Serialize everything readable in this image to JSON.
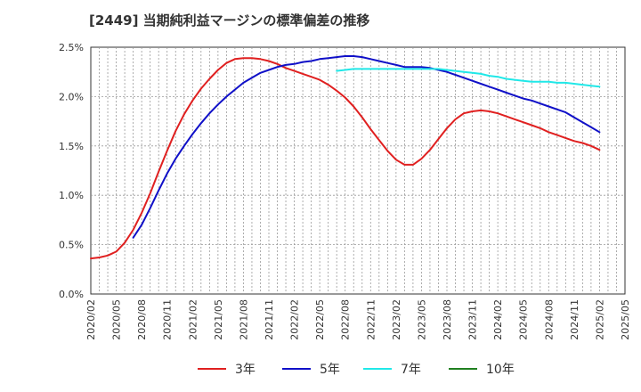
{
  "chart_data": {
    "type": "line",
    "title": "[2449]  当期純利益マージンの標準偏差の推移",
    "xlabel": "",
    "ylabel": "",
    "ylim": [
      0,
      2.5
    ],
    "y_ticks": [
      0,
      0.5,
      1.0,
      1.5,
      2.0,
      2.5
    ],
    "y_tick_labels": [
      "0.0%",
      "0.5%",
      "1.0%",
      "1.5%",
      "2.0%",
      "2.5%"
    ],
    "x_tick_labels": [
      "2020/02",
      "2020/05",
      "2020/08",
      "2020/11",
      "2021/02",
      "2021/05",
      "2021/08",
      "2021/11",
      "2022/02",
      "2022/05",
      "2022/08",
      "2022/11",
      "2023/02",
      "2023/05",
      "2023/08",
      "2023/11",
      "2024/02",
      "2024/05",
      "2024/08",
      "2024/11",
      "2025/02",
      "2025/05"
    ],
    "grid": true,
    "legend_position": "bottom",
    "series": [
      {
        "name": "3年",
        "color": "#e02020",
        "x": [
          "2020/02",
          "2020/03",
          "2020/04",
          "2020/05",
          "2020/06",
          "2020/07",
          "2020/08",
          "2020/09",
          "2020/10",
          "2020/11",
          "2020/12",
          "2021/01",
          "2021/02",
          "2021/03",
          "2021/04",
          "2021/05",
          "2021/06",
          "2021/07",
          "2021/08",
          "2021/09",
          "2021/10",
          "2021/11",
          "2021/12",
          "2022/01",
          "2022/02",
          "2022/03",
          "2022/04",
          "2022/05",
          "2022/06",
          "2022/07",
          "2022/08",
          "2022/09",
          "2022/10",
          "2022/11",
          "2022/12",
          "2023/01",
          "2023/02",
          "2023/03",
          "2023/04",
          "2023/05",
          "2023/06",
          "2023/07",
          "2023/08",
          "2023/09",
          "2023/10",
          "2023/11",
          "2023/12",
          "2024/01",
          "2024/02",
          "2024/03",
          "2024/04",
          "2024/05",
          "2024/06",
          "2024/07",
          "2024/08",
          "2024/09",
          "2024/10",
          "2024/11",
          "2024/12",
          "2025/01",
          "2025/02"
        ],
        "values": [
          0.36,
          0.37,
          0.39,
          0.43,
          0.52,
          0.65,
          0.82,
          1.02,
          1.24,
          1.45,
          1.65,
          1.82,
          1.96,
          2.08,
          2.18,
          2.27,
          2.34,
          2.38,
          2.39,
          2.39,
          2.38,
          2.36,
          2.33,
          2.29,
          2.26,
          2.23,
          2.2,
          2.17,
          2.12,
          2.06,
          1.99,
          1.9,
          1.79,
          1.67,
          1.56,
          1.45,
          1.36,
          1.31,
          1.31,
          1.37,
          1.46,
          1.57,
          1.68,
          1.77,
          1.83,
          1.85,
          1.86,
          1.85,
          1.83,
          1.8,
          1.77,
          1.74,
          1.71,
          1.68,
          1.64,
          1.61,
          1.58,
          1.55,
          1.53,
          1.5,
          1.46
        ]
      },
      {
        "name": "5年",
        "color": "#1010c8",
        "x": [
          "2020/07",
          "2020/08",
          "2020/09",
          "2020/10",
          "2020/11",
          "2020/12",
          "2021/01",
          "2021/02",
          "2021/03",
          "2021/04",
          "2021/05",
          "2021/06",
          "2021/07",
          "2021/08",
          "2021/09",
          "2021/10",
          "2021/11",
          "2021/12",
          "2022/01",
          "2022/02",
          "2022/03",
          "2022/04",
          "2022/05",
          "2022/06",
          "2022/07",
          "2022/08",
          "2022/09",
          "2022/10",
          "2022/11",
          "2022/12",
          "2023/01",
          "2023/02",
          "2023/03",
          "2023/04",
          "2023/05",
          "2023/06",
          "2023/07",
          "2023/08",
          "2023/09",
          "2023/10",
          "2023/11",
          "2023/12",
          "2024/01",
          "2024/02",
          "2024/03",
          "2024/04",
          "2024/05",
          "2024/06",
          "2024/07",
          "2024/08",
          "2024/09",
          "2024/10",
          "2024/11",
          "2024/12",
          "2025/01",
          "2025/02"
        ],
        "values": [
          0.57,
          0.7,
          0.87,
          1.05,
          1.22,
          1.37,
          1.5,
          1.62,
          1.73,
          1.83,
          1.92,
          2.0,
          2.07,
          2.14,
          2.19,
          2.24,
          2.27,
          2.3,
          2.32,
          2.33,
          2.35,
          2.36,
          2.38,
          2.39,
          2.4,
          2.41,
          2.41,
          2.4,
          2.38,
          2.36,
          2.34,
          2.32,
          2.3,
          2.3,
          2.3,
          2.29,
          2.27,
          2.25,
          2.22,
          2.19,
          2.16,
          2.13,
          2.1,
          2.07,
          2.04,
          2.01,
          1.98,
          1.96,
          1.93,
          1.9,
          1.87,
          1.84,
          1.79,
          1.74,
          1.69,
          1.64
        ]
      },
      {
        "name": "7年",
        "color": "#20e8e8",
        "x": [
          "2022/07",
          "2022/08",
          "2022/09",
          "2022/10",
          "2022/11",
          "2022/12",
          "2023/01",
          "2023/02",
          "2023/03",
          "2023/04",
          "2023/05",
          "2023/06",
          "2023/07",
          "2023/08",
          "2023/09",
          "2023/10",
          "2023/11",
          "2023/12",
          "2024/01",
          "2024/02",
          "2024/03",
          "2024/04",
          "2024/05",
          "2024/06",
          "2024/07",
          "2024/08",
          "2024/09",
          "2024/10",
          "2024/11",
          "2024/12",
          "2025/01",
          "2025/02"
        ],
        "values": [
          2.26,
          2.27,
          2.28,
          2.28,
          2.28,
          2.28,
          2.28,
          2.28,
          2.28,
          2.28,
          2.28,
          2.28,
          2.28,
          2.27,
          2.26,
          2.25,
          2.24,
          2.23,
          2.21,
          2.2,
          2.18,
          2.17,
          2.16,
          2.15,
          2.15,
          2.15,
          2.14,
          2.14,
          2.13,
          2.12,
          2.11,
          2.1
        ]
      },
      {
        "name": "10年",
        "color": "#208020",
        "x": [],
        "values": []
      }
    ]
  }
}
